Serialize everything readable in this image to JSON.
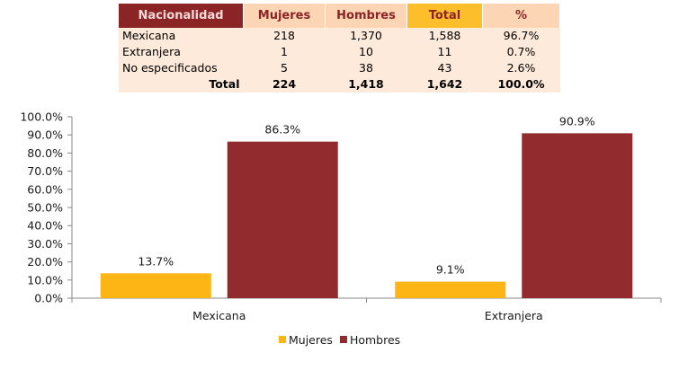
{
  "table": {
    "headers": [
      "Nacionalidad",
      "Mujeres",
      "Hombres",
      "Total",
      "%"
    ],
    "rows": [
      [
        "Mexicana",
        "218",
        "1,370",
        "1,588",
        "96.7%"
      ],
      [
        "Extranjera",
        "1",
        "10",
        "11",
        "0.7%"
      ],
      [
        "No especificados",
        "5",
        "38",
        "43",
        "2.6%"
      ]
    ],
    "total_row": [
      "Total",
      "224",
      "1,418",
      "1,642",
      "100.0%"
    ]
  },
  "chart_data": {
    "type": "bar",
    "categories": [
      "Mexicana",
      "Extranjera"
    ],
    "series": [
      {
        "name": "Mujeres",
        "values": [
          13.7,
          9.1
        ],
        "labels": [
          "13.7%",
          "9.1%"
        ],
        "color": "#FDB515"
      },
      {
        "name": "Hombres",
        "values": [
          86.3,
          90.9
        ],
        "labels": [
          "86.3%",
          "90.9%"
        ],
        "color": "#922B2D"
      }
    ],
    "ylim": [
      0,
      100
    ],
    "yticks": [
      "0.0%",
      "10.0%",
      "20.0%",
      "30.0%",
      "40.0%",
      "50.0%",
      "60.0%",
      "70.0%",
      "80.0%",
      "90.0%",
      "100.0%"
    ],
    "title": "",
    "xlabel": "",
    "ylabel": "",
    "legend_position": "bottom",
    "grid": false
  }
}
